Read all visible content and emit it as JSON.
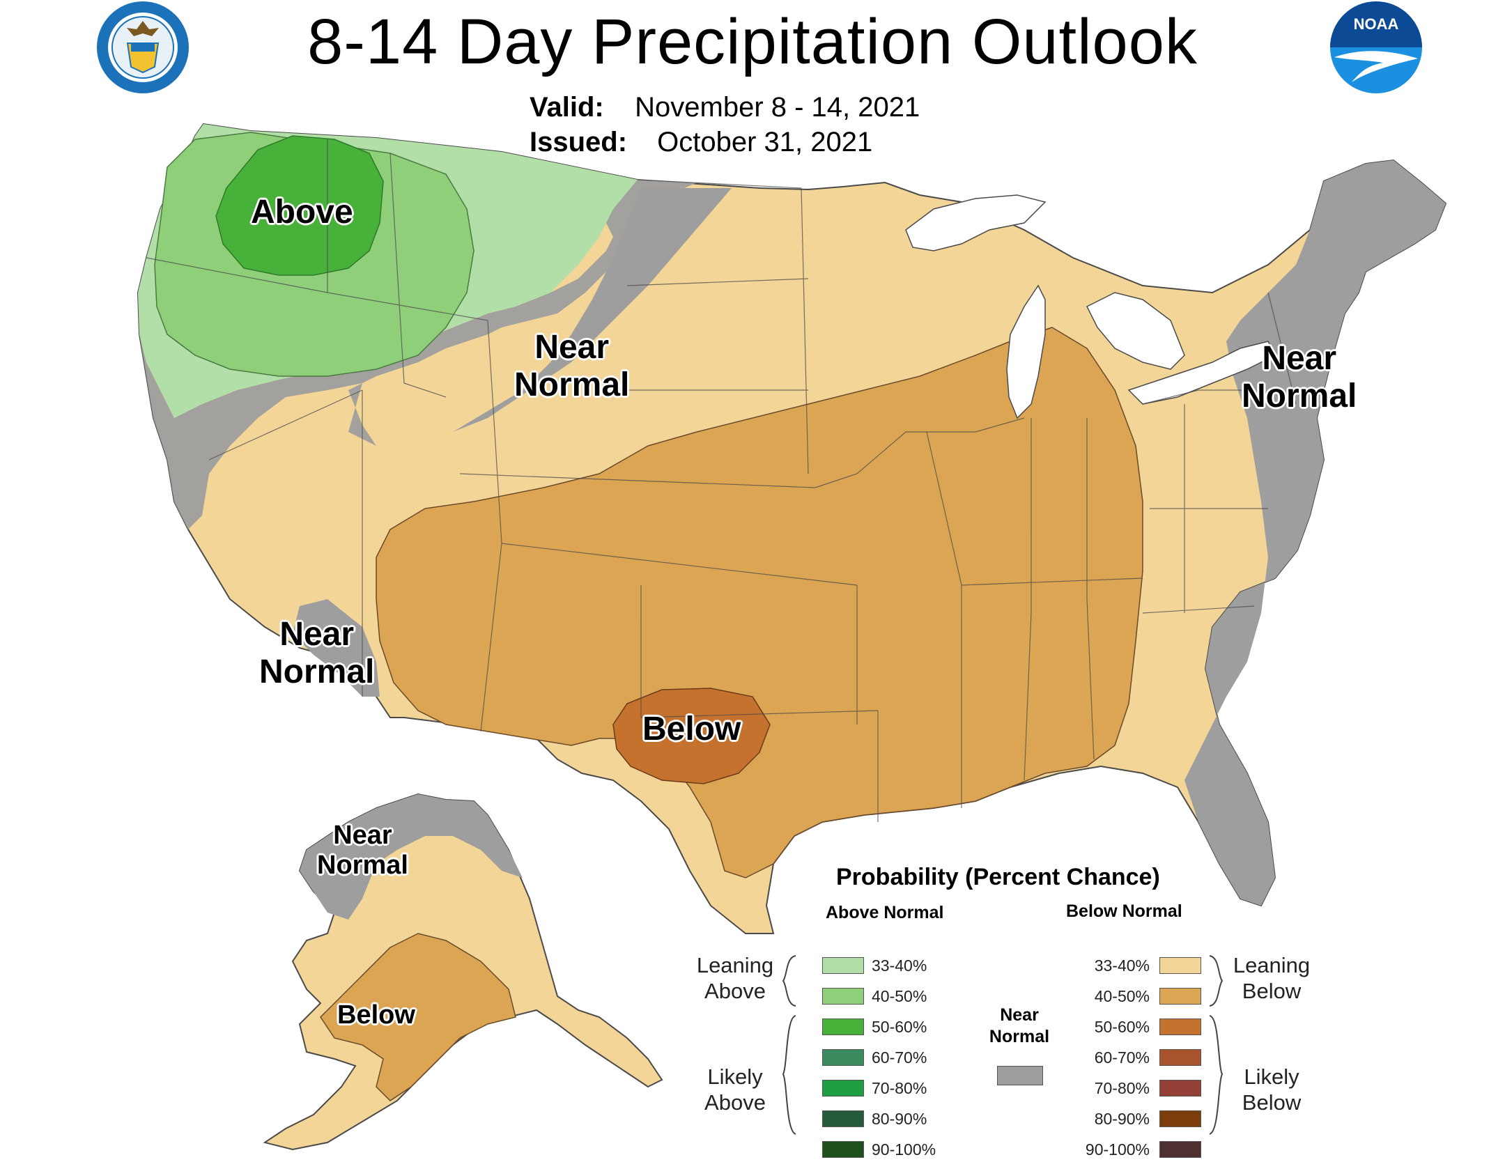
{
  "title": "8-14 Day Precipitation Outlook",
  "valid_label": "Valid:",
  "valid_value": "November 8 - 14, 2021",
  "issued_label": "Issued:",
  "issued_value": "October 31, 2021",
  "logos": {
    "left": "department-of-commerce-seal",
    "right": "noaa-logo",
    "right_text": "NOAA"
  },
  "map_labels": {
    "above_nw": "Above",
    "near_normal_north": [
      "Near",
      "Normal"
    ],
    "near_normal_east": [
      "Near",
      "Normal"
    ],
    "near_normal_ca": [
      "Near",
      "Normal"
    ],
    "below_tx": "Below",
    "near_normal_ak": [
      "Near",
      "Normal"
    ],
    "below_ak": "Below"
  },
  "legend": {
    "title": "Probability (Percent Chance)",
    "above_header": "Above Normal",
    "below_header": "Below Normal",
    "near_header": [
      "Near",
      "Normal"
    ],
    "leaning_above": [
      "Leaning",
      "Above"
    ],
    "likely_above": [
      "Likely",
      "Above"
    ],
    "leaning_below": [
      "Leaning",
      "Below"
    ],
    "likely_below": [
      "Likely",
      "Below"
    ],
    "above": [
      {
        "label": "33-40%",
        "color": "#b2dfa8"
      },
      {
        "label": "40-50%",
        "color": "#8fcf7a"
      },
      {
        "label": "50-60%",
        "color": "#48b13a"
      },
      {
        "label": "60-70%",
        "color": "#3a8a60"
      },
      {
        "label": "70-80%",
        "color": "#1e9d41"
      },
      {
        "label": "80-90%",
        "color": "#245b3b"
      },
      {
        "label": "90-100%",
        "color": "#1f4f1c"
      }
    ],
    "below": [
      {
        "label": "33-40%",
        "color": "#f3d597"
      },
      {
        "label": "40-50%",
        "color": "#dba554"
      },
      {
        "label": "50-60%",
        "color": "#c6722f"
      },
      {
        "label": "60-70%",
        "color": "#a8532c"
      },
      {
        "label": "70-80%",
        "color": "#934036"
      },
      {
        "label": "80-90%",
        "color": "#7b3e0a"
      },
      {
        "label": "90-100%",
        "color": "#4e3030"
      }
    ],
    "near_color": "#9e9e9e"
  },
  "colors": {
    "background": "#ffffff",
    "lakes": "#ffffff",
    "borders": "#4a4a4a"
  }
}
